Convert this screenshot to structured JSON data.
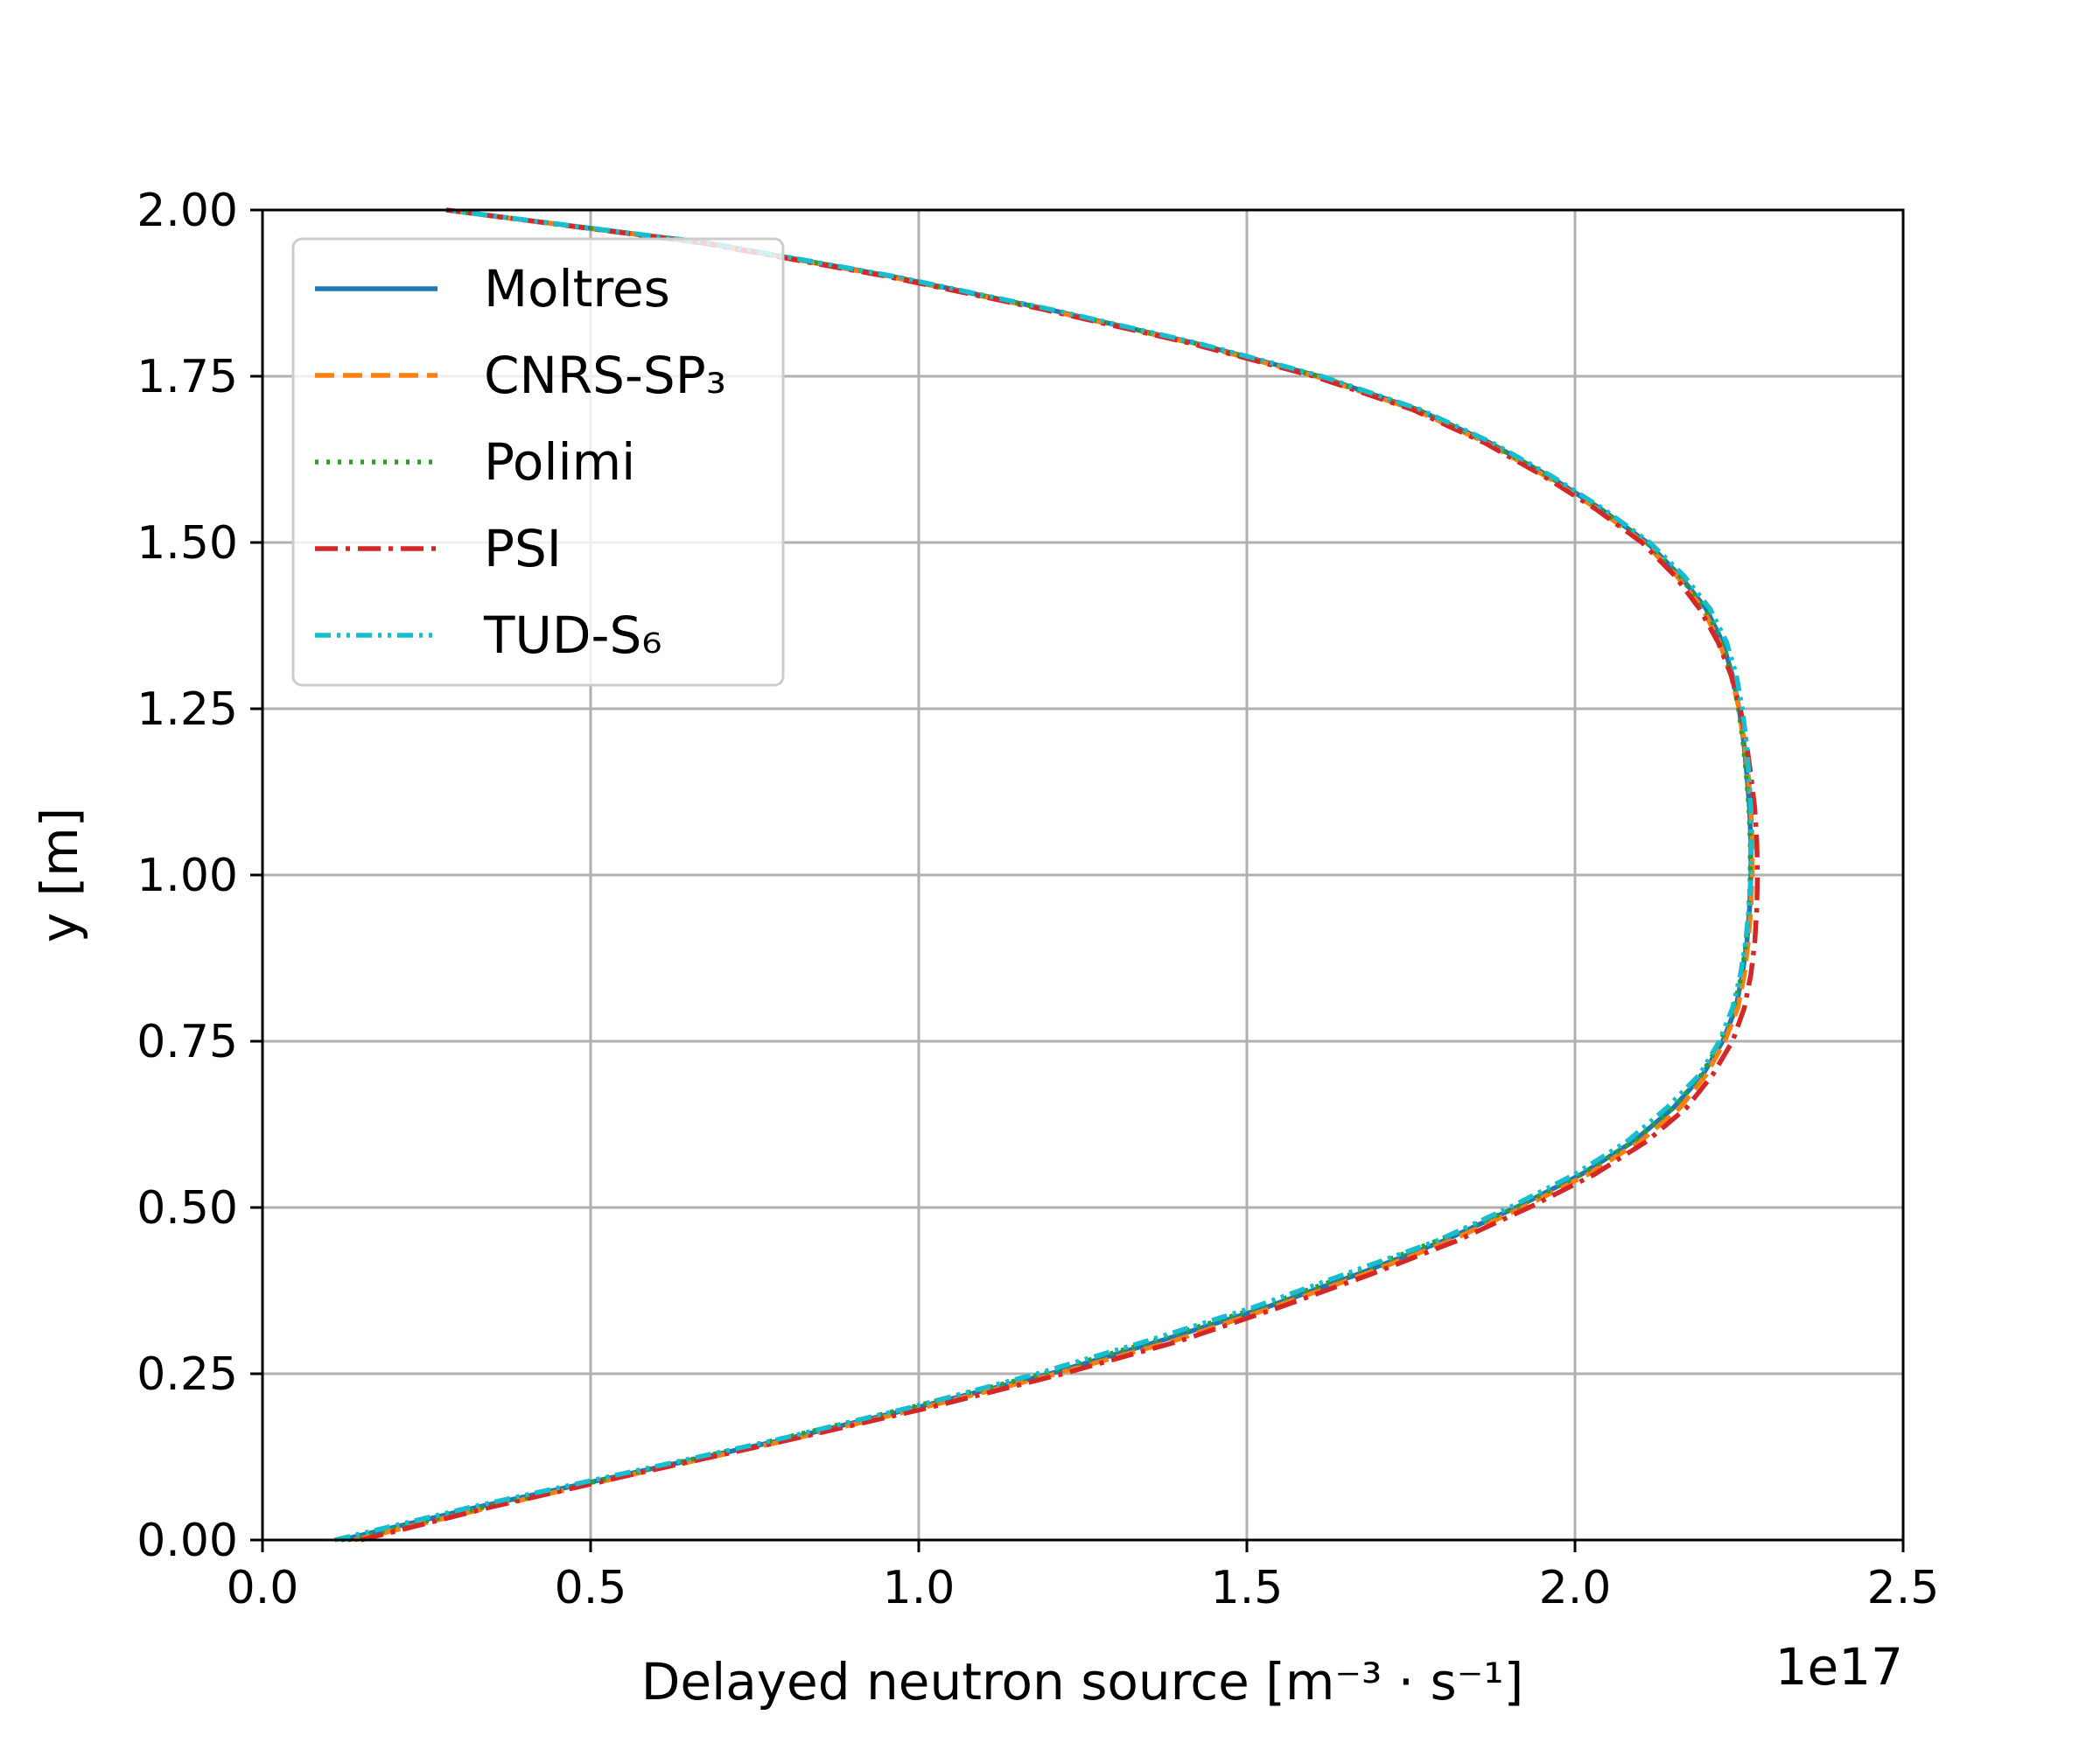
{
  "chart_data": {
    "type": "line",
    "orientation": "profile (x = value, y = position)",
    "xlabel": "Delayed neutron source [m⁻³ · s⁻¹]",
    "ylabel": "y [m]",
    "x_offset_text": "1e17",
    "xlim": [
      0.0,
      2.5
    ],
    "ylim": [
      0.0,
      2.0
    ],
    "x_ticks": [
      "0.0",
      "0.5",
      "1.0",
      "1.5",
      "2.0",
      "2.5"
    ],
    "y_ticks": [
      "0.00",
      "0.25",
      "0.50",
      "0.75",
      "1.00",
      "1.25",
      "1.50",
      "1.75",
      "2.00"
    ],
    "grid": true,
    "legend_position": "upper-left",
    "y": [
      0.0,
      0.05,
      0.1,
      0.15,
      0.2,
      0.25,
      0.3,
      0.35,
      0.4,
      0.45,
      0.5,
      0.55,
      0.6,
      0.65,
      0.7,
      0.75,
      0.8,
      0.85,
      0.9,
      0.95,
      1.0,
      1.05,
      1.1,
      1.15,
      1.2,
      1.25,
      1.3,
      1.35,
      1.4,
      1.45,
      1.5,
      1.55,
      1.6,
      1.65,
      1.7,
      1.75,
      1.8,
      1.85,
      1.9,
      1.95,
      2.0
    ],
    "series": [
      {
        "name": "Moltres",
        "color": "#1f77b4",
        "dash": "solid",
        "x": [
          0.12,
          0.33,
          0.56,
          0.79,
          1.0,
          1.2,
          1.37,
          1.53,
          1.67,
          1.8,
          1.91,
          2.01,
          2.09,
          2.15,
          2.195,
          2.225,
          2.245,
          2.255,
          2.262,
          2.266,
          2.268,
          2.268,
          2.266,
          2.262,
          2.257,
          2.25,
          2.24,
          2.225,
          2.2,
          2.16,
          2.11,
          2.04,
          1.96,
          1.87,
          1.76,
          1.61,
          1.42,
          1.2,
          0.96,
          0.68,
          0.28
        ]
      },
      {
        "name": "CNRS-SP₃",
        "color": "#ff7f0e",
        "dash": "dashed",
        "x": [
          0.14,
          0.35,
          0.57,
          0.8,
          1.01,
          1.21,
          1.39,
          1.54,
          1.68,
          1.81,
          1.92,
          2.02,
          2.1,
          2.16,
          2.2,
          2.228,
          2.248,
          2.258,
          2.264,
          2.268,
          2.27,
          2.27,
          2.268,
          2.264,
          2.258,
          2.25,
          2.238,
          2.22,
          2.195,
          2.155,
          2.105,
          2.035,
          1.955,
          1.865,
          1.755,
          1.605,
          1.415,
          1.195,
          0.955,
          0.675,
          0.28
        ]
      },
      {
        "name": "Polimi",
        "color": "#2ca02c",
        "dash": "dotted",
        "x": [
          0.13,
          0.34,
          0.56,
          0.78,
          0.99,
          1.19,
          1.36,
          1.52,
          1.66,
          1.79,
          1.91,
          2.01,
          2.09,
          2.15,
          2.193,
          2.222,
          2.242,
          2.254,
          2.261,
          2.265,
          2.267,
          2.267,
          2.265,
          2.261,
          2.256,
          2.249,
          2.239,
          2.224,
          2.199,
          2.159,
          2.109,
          2.039,
          1.959,
          1.869,
          1.759,
          1.609,
          1.419,
          1.199,
          0.959,
          0.679,
          0.28
        ]
      },
      {
        "name": "PSI",
        "color": "#d62728",
        "dash": "dashdot",
        "x": [
          0.15,
          0.35,
          0.57,
          0.8,
          1.02,
          1.22,
          1.4,
          1.55,
          1.69,
          1.82,
          1.93,
          2.03,
          2.11,
          2.17,
          2.21,
          2.24,
          2.258,
          2.268,
          2.274,
          2.277,
          2.278,
          2.277,
          2.274,
          2.268,
          2.261,
          2.252,
          2.238,
          2.218,
          2.19,
          2.152,
          2.102,
          2.032,
          1.952,
          1.862,
          1.752,
          1.602,
          1.412,
          1.192,
          0.952,
          0.672,
          0.28
        ]
      },
      {
        "name": "TUD-S₆",
        "color": "#17becf",
        "dash": "dashdotdot",
        "x": [
          0.11,
          0.32,
          0.55,
          0.78,
          0.99,
          1.18,
          1.35,
          1.51,
          1.65,
          1.79,
          1.9,
          2.0,
          2.08,
          2.14,
          2.19,
          2.22,
          2.24,
          2.252,
          2.26,
          2.265,
          2.268,
          2.269,
          2.268,
          2.265,
          2.261,
          2.255,
          2.246,
          2.231,
          2.206,
          2.166,
          2.114,
          2.044,
          1.964,
          1.874,
          1.764,
          1.614,
          1.424,
          1.204,
          0.964,
          0.684,
          0.28
        ]
      }
    ]
  }
}
